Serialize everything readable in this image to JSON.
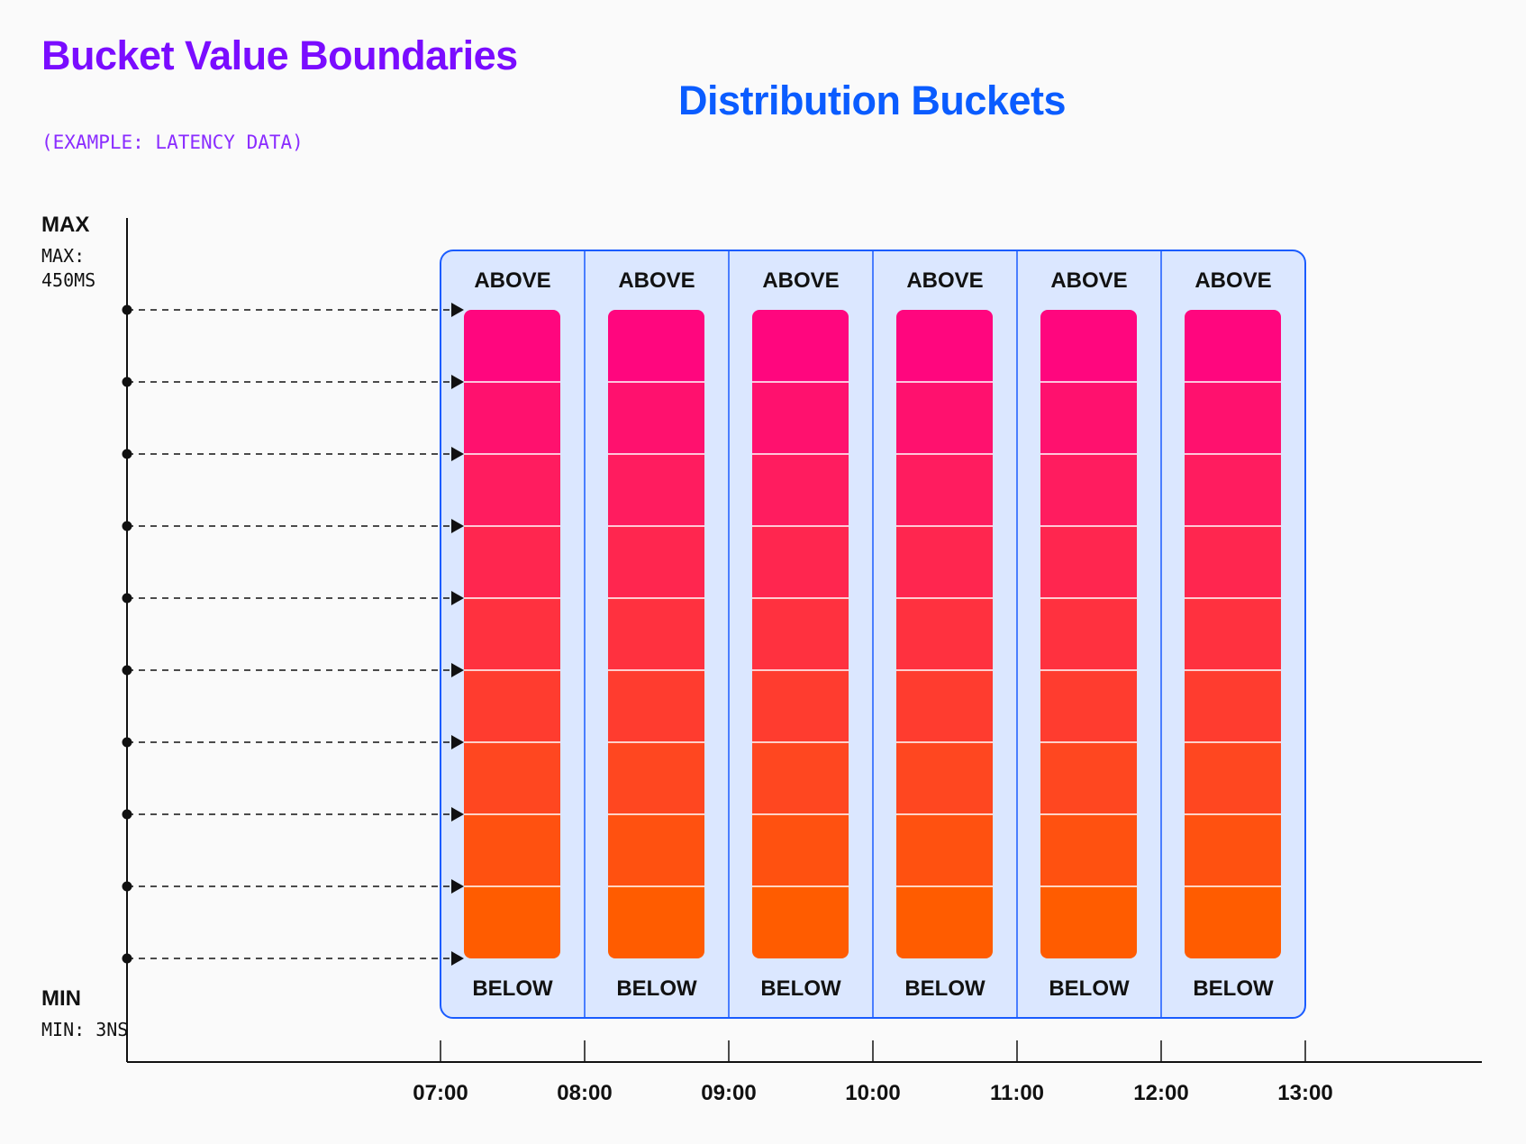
{
  "title": "Bucket Value Boundaries",
  "subtitle": "(EXAMPLE: LATENCY DATA)",
  "diagram_title": "Distribution Buckets",
  "axis": {
    "max_label": "MAX",
    "max_value": "MAX: 450MS",
    "min_label": "MIN",
    "min_value": "MIN: 3NS",
    "boundary_count": 10
  },
  "columns": [
    {
      "time": "07:00",
      "above": "ABOVE",
      "below": "BELOW"
    },
    {
      "time": "08:00",
      "above": "ABOVE",
      "below": "BELOW"
    },
    {
      "time": "09:00",
      "above": "ABOVE",
      "below": "BELOW"
    },
    {
      "time": "10:00",
      "above": "ABOVE",
      "below": "BELOW"
    },
    {
      "time": "11:00",
      "above": "ABOVE",
      "below": "BELOW"
    },
    {
      "time": "12:00",
      "above": "ABOVE",
      "below": "BELOW"
    }
  ],
  "end_time": "13:00",
  "buckets_per_column": 9,
  "colors": {
    "title": "#7a0cff",
    "diagram_title": "#0a5cff",
    "column_bg": "#dbe7ff",
    "column_border": "#1a5cff",
    "bucket_top": "#ff067e",
    "bucket_bottom": "#ff5c00"
  }
}
